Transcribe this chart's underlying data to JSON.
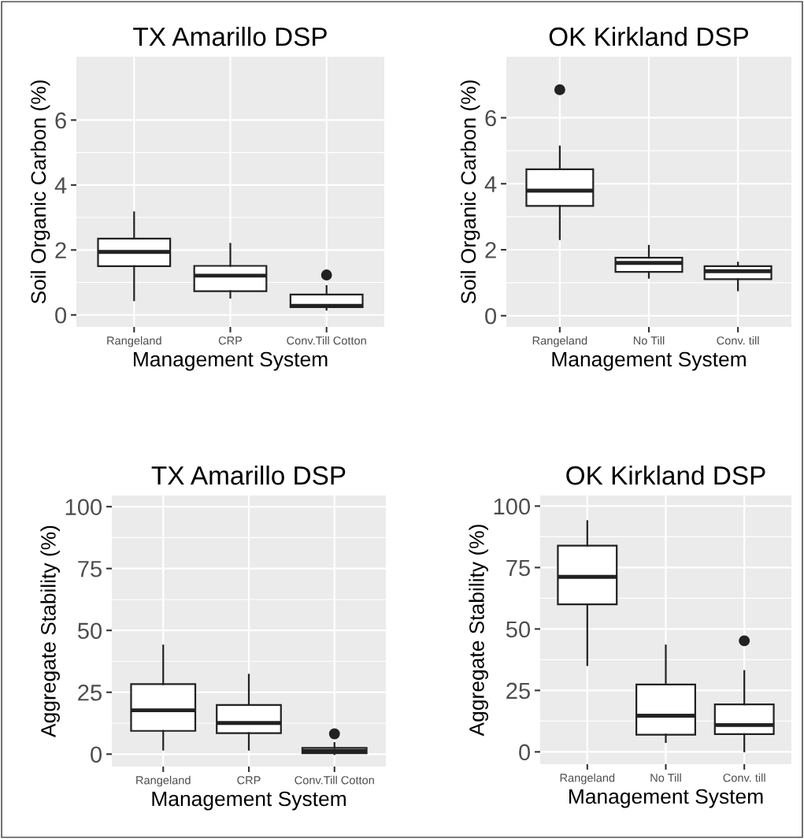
{
  "chart_data": [
    {
      "type": "box",
      "title": "TX Amarillo DSP",
      "xlabel": "Management System",
      "ylabel": "Soil Organic Carbon (%)",
      "categories": [
        "Rangeland",
        "CRP",
        "Conv.Till Cotton"
      ],
      "ylim": [
        -0.37,
        7.95
      ],
      "yticks": [
        0,
        2,
        4,
        6
      ],
      "grid": true,
      "boxes": [
        {
          "low": 0.45,
          "q1": 1.5,
          "median": 1.94,
          "q3": 2.35,
          "high": 3.16
        },
        {
          "low": 0.53,
          "q1": 0.73,
          "median": 1.21,
          "q3": 1.51,
          "high": 2.19
        },
        {
          "low": 0.16,
          "q1": 0.24,
          "median": 0.28,
          "q3": 0.63,
          "high": 0.89,
          "outliers": [
            1.23
          ]
        }
      ]
    },
    {
      "type": "box",
      "title": "OK Kirkland DSP",
      "xlabel": "Management System",
      "ylabel": "Soil Organic Carbon (%)",
      "categories": [
        "Rangeland",
        "No Till",
        "Conv. till"
      ],
      "ylim": [
        -0.34,
        7.85
      ],
      "yticks": [
        0,
        2,
        4,
        6
      ],
      "grid": true,
      "boxes": [
        {
          "low": 2.32,
          "q1": 3.33,
          "median": 3.79,
          "q3": 4.44,
          "high": 5.13,
          "outliers": [
            6.85
          ]
        },
        {
          "low": 1.15,
          "q1": 1.33,
          "median": 1.6,
          "q3": 1.76,
          "high": 2.12
        },
        {
          "low": 0.77,
          "q1": 1.11,
          "median": 1.35,
          "q3": 1.5,
          "high": 1.61
        }
      ]
    },
    {
      "type": "box",
      "title": "TX Amarillo DSP",
      "xlabel": "Management System",
      "ylabel": "Aggregate Stability (%)",
      "categories": [
        "Rangeland",
        "CRP",
        "Conv.Till Cotton"
      ],
      "ylim": [
        -5,
        104.5
      ],
      "yticks": [
        0,
        25,
        50,
        75,
        100
      ],
      "grid": true,
      "boxes": [
        {
          "low": 1.8,
          "q1": 9.4,
          "median": 17.7,
          "q3": 28.3,
          "high": 43.9
        },
        {
          "low": 1.8,
          "q1": 8.5,
          "median": 12.6,
          "q3": 19.9,
          "high": 32.1
        },
        {
          "low": 0,
          "q1": 0.4,
          "median": 1.3,
          "q3": 2.5,
          "high": 4.5,
          "outliers": [
            8.2
          ]
        }
      ]
    },
    {
      "type": "box",
      "title": "OK Kirkland DSP",
      "xlabel": "Management System",
      "ylabel": "Aggregate Stability (%)",
      "categories": [
        "Rangeland",
        "No Till",
        "Conv. till"
      ],
      "ylim": [
        -5,
        104.3
      ],
      "yticks": [
        0,
        25,
        50,
        75,
        100
      ],
      "grid": true,
      "boxes": [
        {
          "low": 35.3,
          "q1": 60,
          "median": 71.2,
          "q3": 83.9,
          "high": 93.9
        },
        {
          "low": 4,
          "q1": 7,
          "median": 14.7,
          "q3": 27.4,
          "high": 43.3
        },
        {
          "low": 0.2,
          "q1": 7.2,
          "median": 10.9,
          "q3": 19.3,
          "high": 32.9,
          "outliers": [
            45.2
          ]
        }
      ]
    }
  ]
}
